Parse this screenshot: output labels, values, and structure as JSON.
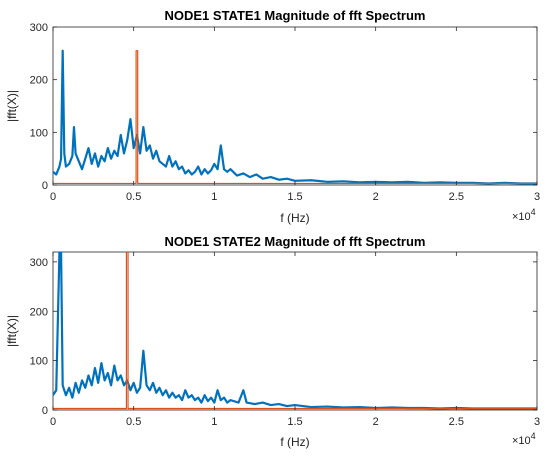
{
  "chart_data": [
    {
      "type": "line",
      "title": "NODE1 STATE1 Magnitude of fft Spectrum",
      "xlabel": "f (Hz)",
      "ylabel": "|fft(X)|",
      "xlim": [
        0,
        30000
      ],
      "ylim": [
        0,
        300
      ],
      "xticks": [
        0,
        5000,
        10000,
        15000,
        20000,
        25000,
        30000
      ],
      "xtick_labels": [
        "0",
        "0.5",
        "1",
        "1.5",
        "2",
        "2.5",
        "3"
      ],
      "x_exponent_label": "×10",
      "x_exponent_power": "4",
      "yticks": [
        0,
        100,
        200,
        300
      ],
      "ytick_labels": [
        "0",
        "100",
        "200",
        "300"
      ],
      "grid": false,
      "series": [
        {
          "color": "#0072BD",
          "points": [
            [
              0,
              25
            ],
            [
              200,
              20
            ],
            [
              400,
              35
            ],
            [
              500,
              50
            ],
            [
              600,
              255
            ],
            [
              700,
              60
            ],
            [
              800,
              35
            ],
            [
              1000,
              40
            ],
            [
              1200,
              55
            ],
            [
              1300,
              110
            ],
            [
              1400,
              60
            ],
            [
              1600,
              45
            ],
            [
              1800,
              30
            ],
            [
              2000,
              50
            ],
            [
              2200,
              70
            ],
            [
              2400,
              40
            ],
            [
              2600,
              60
            ],
            [
              2800,
              35
            ],
            [
              3000,
              55
            ],
            [
              3200,
              45
            ],
            [
              3400,
              70
            ],
            [
              3600,
              50
            ],
            [
              3800,
              65
            ],
            [
              4000,
              55
            ],
            [
              4200,
              95
            ],
            [
              4400,
              60
            ],
            [
              4600,
              85
            ],
            [
              4800,
              125
            ],
            [
              5000,
              70
            ],
            [
              5200,
              95
            ],
            [
              5400,
              60
            ],
            [
              5600,
              110
            ],
            [
              5800,
              65
            ],
            [
              6000,
              75
            ],
            [
              6200,
              50
            ],
            [
              6400,
              65
            ],
            [
              6600,
              45
            ],
            [
              6800,
              40
            ],
            [
              7000,
              35
            ],
            [
              7200,
              55
            ],
            [
              7400,
              35
            ],
            [
              7600,
              45
            ],
            [
              7800,
              30
            ],
            [
              8000,
              35
            ],
            [
              8200,
              22
            ],
            [
              8400,
              28
            ],
            [
              8600,
              20
            ],
            [
              8800,
              25
            ],
            [
              9000,
              35
            ],
            [
              9200,
              20
            ],
            [
              9400,
              30
            ],
            [
              9600,
              22
            ],
            [
              9800,
              28
            ],
            [
              10000,
              40
            ],
            [
              10200,
              30
            ],
            [
              10400,
              75
            ],
            [
              10600,
              30
            ],
            [
              10800,
              25
            ],
            [
              11000,
              30
            ],
            [
              11400,
              18
            ],
            [
              11800,
              22
            ],
            [
              12200,
              15
            ],
            [
              12600,
              20
            ],
            [
              13000,
              12
            ],
            [
              13500,
              15
            ],
            [
              14000,
              10
            ],
            [
              14500,
              12
            ],
            [
              15000,
              8
            ],
            [
              16000,
              9
            ],
            [
              17000,
              6
            ],
            [
              18000,
              7
            ],
            [
              19000,
              5
            ],
            [
              20000,
              6
            ],
            [
              21000,
              5
            ],
            [
              22000,
              6
            ],
            [
              23000,
              4
            ],
            [
              24000,
              5
            ],
            [
              25000,
              4
            ],
            [
              26000,
              4
            ],
            [
              27000,
              3
            ],
            [
              28000,
              4
            ],
            [
              29000,
              3
            ],
            [
              30000,
              3
            ]
          ]
        },
        {
          "color": "#D95319",
          "points": [
            [
              0,
              3
            ],
            [
              5150,
              3
            ],
            [
              5150,
              255
            ],
            [
              5250,
              255
            ],
            [
              5250,
              3
            ],
            [
              30000,
              3
            ]
          ]
        }
      ]
    },
    {
      "type": "line",
      "title": "NODE1 STATE2 Magnitude of fft Spectrum",
      "xlabel": "f (Hz)",
      "ylabel": "|fft(X)|",
      "xlim": [
        0,
        30000
      ],
      "ylim": [
        0,
        320
      ],
      "xticks": [
        0,
        5000,
        10000,
        15000,
        20000,
        25000,
        30000
      ],
      "xtick_labels": [
        "0",
        "0.5",
        "1",
        "1.5",
        "2",
        "2.5",
        "3"
      ],
      "x_exponent_label": "×10",
      "x_exponent_power": "4",
      "yticks": [
        0,
        100,
        200,
        300
      ],
      "ytick_labels": [
        "0",
        "100",
        "200",
        "300"
      ],
      "grid": false,
      "series": [
        {
          "color": "#0072BD",
          "points": [
            [
              0,
              30
            ],
            [
              200,
              40
            ],
            [
              400,
              320
            ],
            [
              500,
              320
            ],
            [
              600,
              50
            ],
            [
              800,
              30
            ],
            [
              1000,
              45
            ],
            [
              1200,
              25
            ],
            [
              1400,
              55
            ],
            [
              1600,
              35
            ],
            [
              1800,
              60
            ],
            [
              2000,
              45
            ],
            [
              2200,
              70
            ],
            [
              2400,
              50
            ],
            [
              2600,
              85
            ],
            [
              2800,
              55
            ],
            [
              3000,
              95
            ],
            [
              3200,
              60
            ],
            [
              3400,
              75
            ],
            [
              3600,
              50
            ],
            [
              3800,
              90
            ],
            [
              4000,
              60
            ],
            [
              4200,
              70
            ],
            [
              4400,
              50
            ],
            [
              4600,
              60
            ],
            [
              4800,
              40
            ],
            [
              5000,
              55
            ],
            [
              5200,
              35
            ],
            [
              5400,
              45
            ],
            [
              5600,
              120
            ],
            [
              5800,
              50
            ],
            [
              6000,
              40
            ],
            [
              6200,
              55
            ],
            [
              6400,
              35
            ],
            [
              6600,
              45
            ],
            [
              6800,
              30
            ],
            [
              7000,
              40
            ],
            [
              7200,
              25
            ],
            [
              7400,
              35
            ],
            [
              7600,
              25
            ],
            [
              7800,
              30
            ],
            [
              8000,
              20
            ],
            [
              8200,
              40
            ],
            [
              8400,
              25
            ],
            [
              8600,
              30
            ],
            [
              8800,
              20
            ],
            [
              9000,
              25
            ],
            [
              9200,
              15
            ],
            [
              9400,
              30
            ],
            [
              9600,
              18
            ],
            [
              9800,
              25
            ],
            [
              10000,
              15
            ],
            [
              10200,
              40
            ],
            [
              10400,
              20
            ],
            [
              10600,
              25
            ],
            [
              10800,
              15
            ],
            [
              11000,
              20
            ],
            [
              11500,
              15
            ],
            [
              11800,
              40
            ],
            [
              12000,
              15
            ],
            [
              12500,
              12
            ],
            [
              13000,
              15
            ],
            [
              13500,
              10
            ],
            [
              14000,
              12
            ],
            [
              14500,
              8
            ],
            [
              15000,
              10
            ],
            [
              16000,
              6
            ],
            [
              17000,
              7
            ],
            [
              18000,
              5
            ],
            [
              19000,
              6
            ],
            [
              20000,
              4
            ],
            [
              21000,
              5
            ],
            [
              22000,
              4
            ],
            [
              23000,
              4
            ],
            [
              24000,
              3
            ],
            [
              25000,
              4
            ],
            [
              26000,
              3
            ],
            [
              27000,
              3
            ],
            [
              28000,
              3
            ],
            [
              29000,
              3
            ],
            [
              30000,
              3
            ]
          ]
        },
        {
          "color": "#D95319",
          "points": [
            [
              0,
              3
            ],
            [
              4550,
              3
            ],
            [
              4550,
              320
            ],
            [
              4650,
              320
            ],
            [
              4650,
              3
            ],
            [
              30000,
              3
            ]
          ]
        }
      ]
    }
  ]
}
